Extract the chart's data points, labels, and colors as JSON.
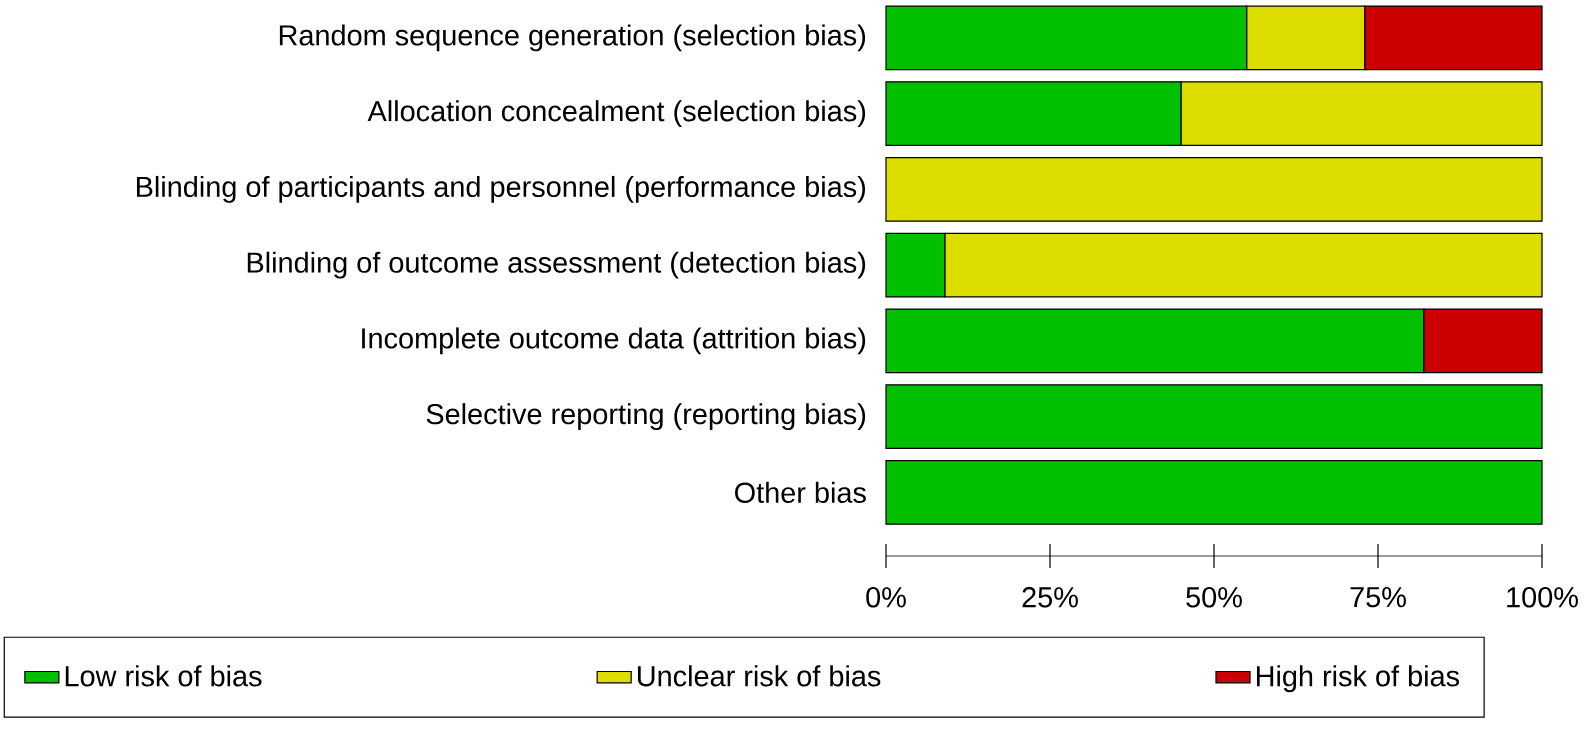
{
  "chart_data": {
    "type": "bar",
    "orientation": "horizontal",
    "stacked": true,
    "categories": [
      "Random sequence generation (selection bias)",
      "Allocation concealment (selection bias)",
      "Blinding of participants and personnel (performance bias)",
      "Blinding of outcome assessment (detection bias)",
      "Incomplete outcome data (attrition bias)",
      "Selective reporting (reporting bias)",
      "Other bias"
    ],
    "series": [
      {
        "name": "Low risk of bias",
        "color": "#00c000",
        "values": [
          55,
          45,
          null,
          9,
          82,
          100,
          100
        ]
      },
      {
        "name": "Unclear risk of bias",
        "color": "#dddd00",
        "values": [
          18,
          55,
          100,
          91,
          null,
          null,
          null
        ]
      },
      {
        "name": "High risk of bias",
        "color": "#cc0000",
        "values": [
          27,
          null,
          null,
          null,
          18,
          null,
          null
        ]
      }
    ],
    "xlim": [
      0,
      100
    ],
    "xticks": [
      {
        "value": 0,
        "label": "0%"
      },
      {
        "value": 25,
        "label": "25%"
      },
      {
        "value": 50,
        "label": "50%"
      },
      {
        "value": 75,
        "label": "75%"
      },
      {
        "value": 100,
        "label": "100%"
      }
    ],
    "legend": "bottom"
  }
}
